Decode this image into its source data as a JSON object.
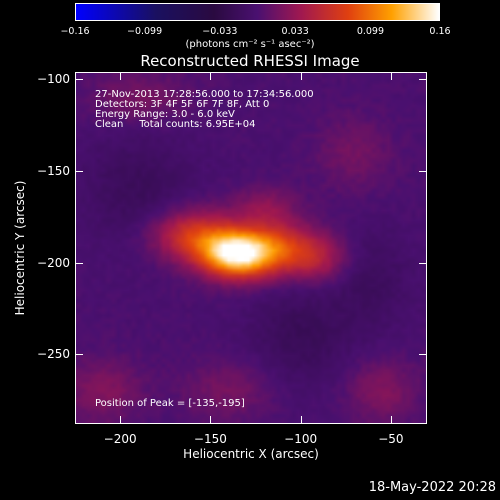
{
  "chart_data": {
    "type": "heatmap",
    "title": "Reconstructed RHESSI Image",
    "xlabel": "Heliocentric X (arcsec)",
    "ylabel": "Heliocentric Y (arcsec)",
    "xlim": [
      -225,
      -30
    ],
    "ylim": [
      -288,
      -96
    ],
    "x_ticks": [
      -200,
      -150,
      -100,
      -50
    ],
    "y_ticks": [
      -100,
      -150,
      -200,
      -250
    ],
    "x_tick_labels": [
      "−200",
      "−150",
      "−100",
      "−50"
    ],
    "y_tick_labels": [
      "−100",
      "−150",
      "−200",
      "−250"
    ],
    "colorbar": {
      "range": [
        -0.16,
        0.16
      ],
      "ticks": [
        -0.16,
        -0.099,
        -0.033,
        0.033,
        0.099,
        0.16
      ],
      "tick_labels": [
        "−0.16",
        "−0.099",
        "−0.033",
        "0.033",
        "0.099",
        "0.16"
      ],
      "colormap": "rainbow-to-hot",
      "unit_label": "(photons cm⁻² s⁻¹ asec⁻²)"
    },
    "peak_position": [
      -135,
      -195
    ],
    "annotations": {
      "line1": "27-Nov-2013 17:28:56.000 to 17:34:56.000",
      "line2": "Detectors: 3F 4F 5F 6F 7F 8F, Att 0",
      "line3": "Energy Range: 3.0 - 6.0 keV",
      "line4": "Clean     Total counts: 6.95E+04",
      "peak_text": "Position of Peak = [-135,-195]"
    },
    "sources": [
      {
        "x": -135,
        "y": -195,
        "amplitude": 0.16,
        "sigma_x": 14,
        "sigma_y": 9
      },
      {
        "x": -160,
        "y": -185,
        "amplitude": 0.07,
        "sigma_x": 16,
        "sigma_y": 10
      },
      {
        "x": -110,
        "y": -192,
        "amplitude": 0.06,
        "sigma_x": 14,
        "sigma_y": 10
      },
      {
        "x": -90,
        "y": -198,
        "amplitude": 0.04,
        "sigma_x": 12,
        "sigma_y": 9
      },
      {
        "x": -120,
        "y": -170,
        "amplitude": 0.03,
        "sigma_x": 12,
        "sigma_y": 8
      },
      {
        "x": -210,
        "y": -270,
        "amplitude": 0.025,
        "sigma_x": 15,
        "sigma_y": 12
      },
      {
        "x": -140,
        "y": -270,
        "amplitude": 0.02,
        "sigma_x": 18,
        "sigma_y": 12
      },
      {
        "x": -55,
        "y": -270,
        "amplitude": 0.025,
        "sigma_x": 14,
        "sigma_y": 12
      },
      {
        "x": -190,
        "y": -110,
        "amplitude": 0.02,
        "sigma_x": 20,
        "sigma_y": 10
      },
      {
        "x": -70,
        "y": -140,
        "amplitude": 0.018,
        "sigma_x": 15,
        "sigma_y": 14
      },
      {
        "x": -100,
        "y": -240,
        "amplitude": -0.02,
        "sigma_x": 20,
        "sigma_y": 20
      },
      {
        "x": -190,
        "y": -160,
        "amplitude": -0.018,
        "sigma_x": 22,
        "sigma_y": 22
      },
      {
        "x": -60,
        "y": -210,
        "amplitude": -0.015,
        "sigma_x": 15,
        "sigma_y": 20
      }
    ]
  },
  "footer_timestamp": "18-May-2022 20:28"
}
